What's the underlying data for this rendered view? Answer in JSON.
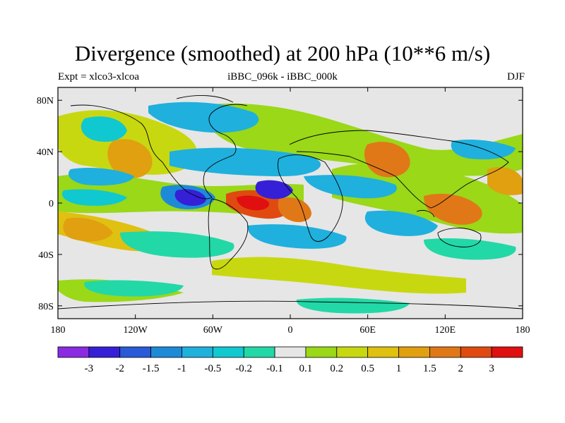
{
  "header": {
    "title": "Divergence (smoothed) at 200 hPa (10**6 m/s)",
    "left_label": "Expt = xlco3-xlcoa",
    "center_label": "iBBC_096k - iBBC_000k",
    "right_label": "DJF"
  },
  "map": {
    "lat_ticks": [
      "80N",
      "40N",
      "0",
      "40S",
      "80S"
    ],
    "lon_ticks": [
      "180",
      "120W",
      "60W",
      "0",
      "60E",
      "120E",
      "180"
    ],
    "lat_values": [
      80,
      40,
      0,
      -40,
      -80
    ],
    "lon_values": [
      -180,
      -120,
      -60,
      0,
      60,
      120,
      180
    ],
    "lat_range": [
      -90,
      90
    ],
    "lon_range": [
      -180,
      180
    ],
    "background_color": "#e6e6e6"
  },
  "colorbar": {
    "labels": [
      "-3",
      "-2",
      "-1.5",
      "-1",
      "-0.5",
      "-0.2",
      "-0.1",
      "0.1",
      "0.2",
      "0.5",
      "1",
      "1.5",
      "2",
      "3"
    ],
    "colors": [
      "#8a2be2",
      "#3520d8",
      "#2a5ad8",
      "#1d8ad8",
      "#1fb0dd",
      "#10c8d0",
      "#22d8a6",
      "#e6e6e6",
      "#9ad818",
      "#c8d810",
      "#e0c010",
      "#e0a010",
      "#e07818",
      "#e04a10",
      "#e01010"
    ]
  },
  "regions": [
    {
      "name": "itcz-east-pacific-negative",
      "lon": -90,
      "lat": 3,
      "value": -2.5
    },
    {
      "name": "atlantic-positive-max",
      "lon": -30,
      "lat": -3,
      "value": 3.0
    },
    {
      "name": "africa-positive",
      "lon": 10,
      "lat": -5,
      "value": 2.0
    },
    {
      "name": "west-africa-negative",
      "lon": -10,
      "lat": 10,
      "value": -2.0
    },
    {
      "name": "asia-positive",
      "lon": 80,
      "lat": 30,
      "value": 1.5
    },
    {
      "name": "maritime-continent-positive",
      "lon": 120,
      "lat": -5,
      "value": 1.5
    },
    {
      "name": "central-pacific-positive",
      "lon": -150,
      "lat": -15,
      "value": 1.0
    },
    {
      "name": "north-atlantic-negative",
      "lon": -60,
      "lat": 50,
      "value": -0.5
    },
    {
      "name": "southern-ocean-negative",
      "lon": -30,
      "lat": -60,
      "value": -0.5
    },
    {
      "name": "indian-ocean-negative",
      "lon": 70,
      "lat": -10,
      "value": -0.5
    }
  ]
}
